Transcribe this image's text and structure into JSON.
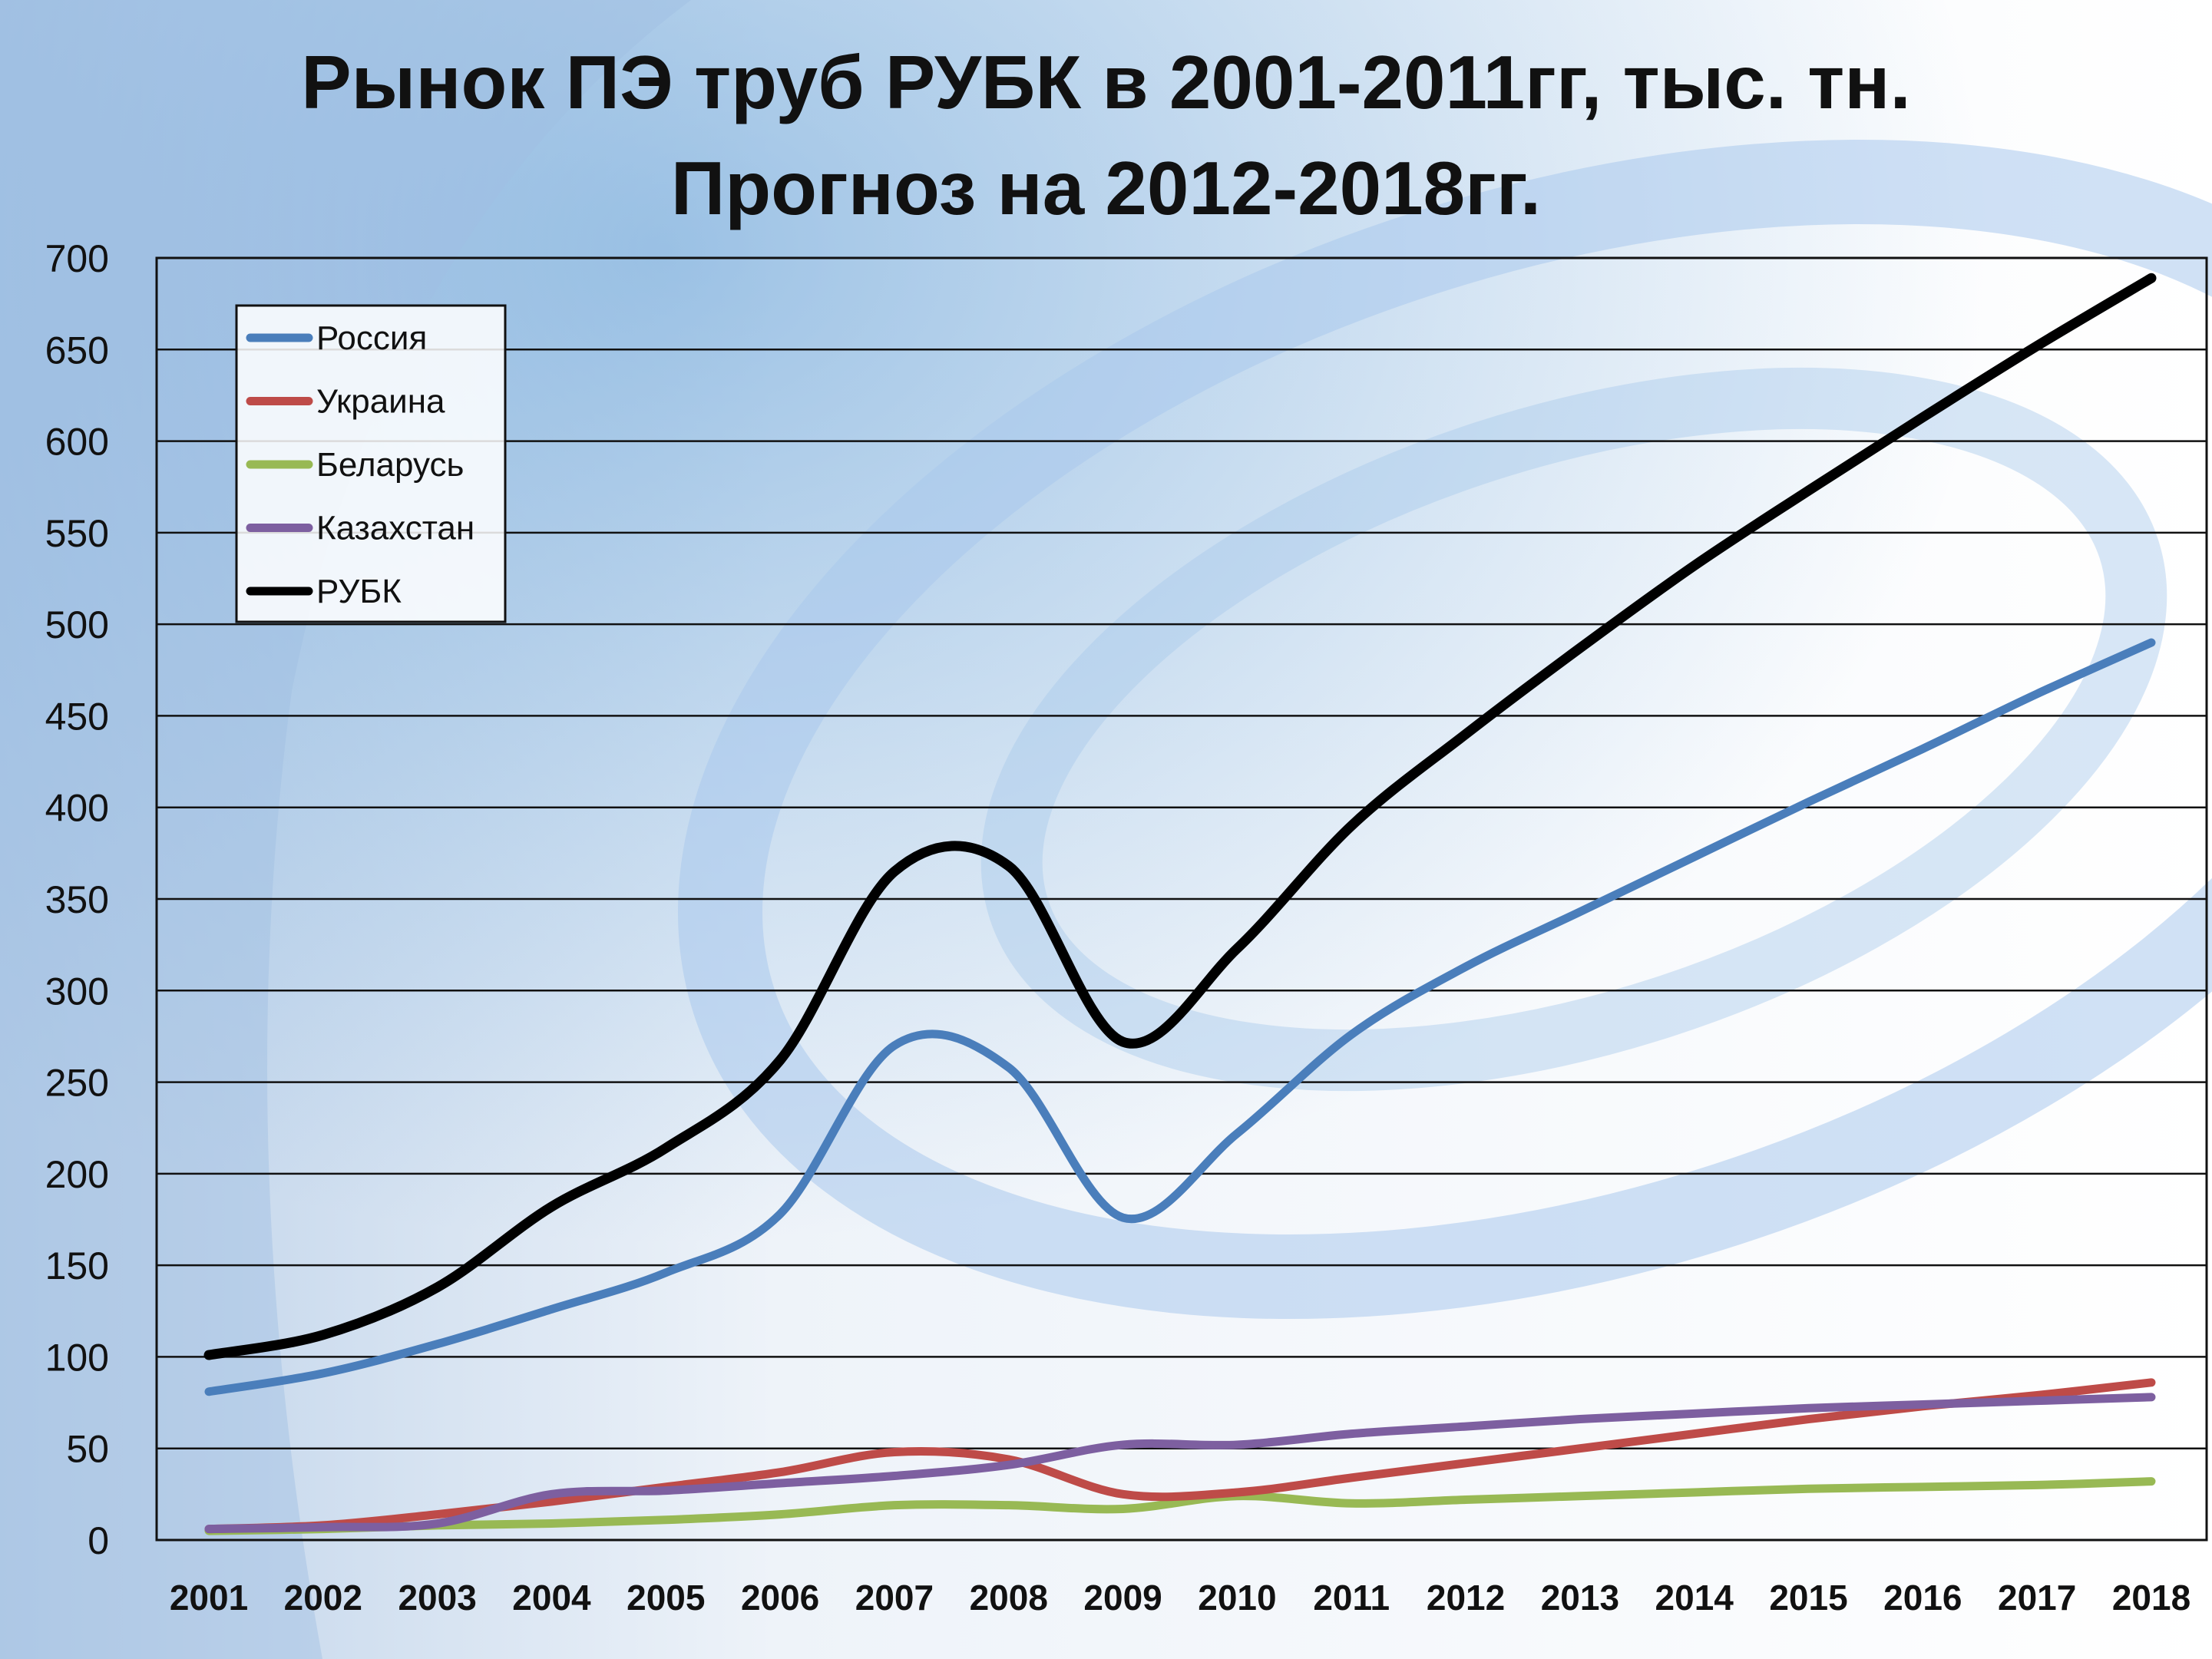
{
  "chart_data": {
    "type": "line",
    "title_line1": "Рынок ПЭ труб РУБК в 2001-2011гг, тыс. тн.",
    "title_line2": "Прогноз на 2012-2018гг.",
    "xlabel": "",
    "ylabel": "",
    "x": [
      "2001",
      "2002",
      "2003",
      "2004",
      "2005",
      "2006",
      "2007",
      "2008",
      "2009",
      "2010",
      "2011",
      "2012",
      "2013",
      "2014",
      "2015",
      "2016",
      "2017",
      "2018"
    ],
    "yticks": [
      "0",
      "50",
      "100",
      "150",
      "200",
      "250",
      "300",
      "350",
      "400",
      "450",
      "500",
      "550",
      "600",
      "650",
      "700"
    ],
    "ylim": [
      0,
      700
    ],
    "grid": true,
    "legend_position": "top-left",
    "series": [
      {
        "name": "Россия",
        "color": "#4a7ebb",
        "values": [
          81,
          91,
          107,
          126,
          146,
          178,
          270,
          258,
          176,
          222,
          276,
          313,
          343,
          373,
          403,
          432,
          462,
          490
        ]
      },
      {
        "name": "Украина",
        "color": "#be4b48",
        "values": [
          6,
          8,
          14,
          21,
          29,
          37,
          48,
          44,
          25,
          26,
          34,
          42,
          50,
          58,
          66,
          73,
          79,
          86
        ]
      },
      {
        "name": "Беларусь",
        "color": "#98b954",
        "values": [
          5,
          6,
          8,
          9,
          11,
          14,
          19,
          19,
          17,
          24,
          20,
          22,
          24,
          26,
          28,
          29,
          30,
          32
        ]
      },
      {
        "name": "Казахстан",
        "color": "#7d5fa0",
        "values": [
          6,
          7,
          9,
          25,
          27,
          31,
          35,
          41,
          52,
          52,
          58,
          62,
          66,
          69,
          72,
          74,
          76,
          78
        ]
      },
      {
        "name": "РУБК",
        "color": "#000000",
        "values": [
          101,
          112,
          138,
          182,
          214,
          262,
          365,
          368,
          272,
          323,
          390,
          440,
          487,
          532,
          573,
          613,
          652,
          689
        ]
      }
    ]
  }
}
